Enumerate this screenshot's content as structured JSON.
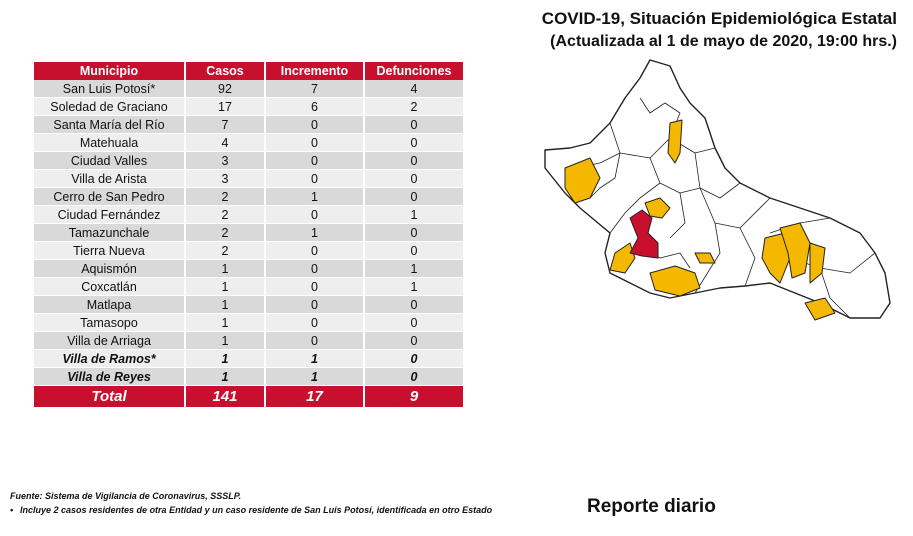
{
  "header": {
    "title": "COVID-19, Situación Epidemiológica Estatal",
    "subtitle": "(Actualizada al 1 de mayo de 2020, 19:00 hrs.)"
  },
  "table": {
    "columns": [
      "Municipio",
      "Casos",
      "Incremento",
      "Defunciones"
    ],
    "rows": [
      {
        "municipio": "San Luis Potosí*",
        "casos": "92",
        "incremento": "7",
        "defunciones": "4",
        "emphasis": false
      },
      {
        "municipio": "Soledad de Graciano",
        "casos": "17",
        "incremento": "6",
        "defunciones": "2",
        "emphasis": false
      },
      {
        "municipio": "Santa María del Río",
        "casos": "7",
        "incremento": "0",
        "defunciones": "0",
        "emphasis": false
      },
      {
        "municipio": "Matehuala",
        "casos": "4",
        "incremento": "0",
        "defunciones": "0",
        "emphasis": false
      },
      {
        "municipio": "Ciudad Valles",
        "casos": "3",
        "incremento": "0",
        "defunciones": "0",
        "emphasis": false
      },
      {
        "municipio": "Villa de Arista",
        "casos": "3",
        "incremento": "0",
        "defunciones": "0",
        "emphasis": false
      },
      {
        "municipio": "Cerro de San Pedro",
        "casos": "2",
        "incremento": "1",
        "defunciones": "0",
        "emphasis": false
      },
      {
        "municipio": "Ciudad Fernández",
        "casos": "2",
        "incremento": "0",
        "defunciones": "1",
        "emphasis": false
      },
      {
        "municipio": "Tamazunchale",
        "casos": "2",
        "incremento": "1",
        "defunciones": "0",
        "emphasis": false
      },
      {
        "municipio": "Tierra Nueva",
        "casos": "2",
        "incremento": "0",
        "defunciones": "0",
        "emphasis": false
      },
      {
        "municipio": "Aquismón",
        "casos": "1",
        "incremento": "0",
        "defunciones": "1",
        "emphasis": false
      },
      {
        "municipio": "Coxcatlán",
        "casos": "1",
        "incremento": "0",
        "defunciones": "1",
        "emphasis": false
      },
      {
        "municipio": "Matlapa",
        "casos": "1",
        "incremento": "0",
        "defunciones": "0",
        "emphasis": false
      },
      {
        "municipio": "Tamasopo",
        "casos": "1",
        "incremento": "0",
        "defunciones": "0",
        "emphasis": false
      },
      {
        "municipio": "Villa de Arriaga",
        "casos": "1",
        "incremento": "0",
        "defunciones": "0",
        "emphasis": false
      },
      {
        "municipio": "Villa de Ramos*",
        "casos": "1",
        "incremento": "1",
        "defunciones": "0",
        "emphasis": true
      },
      {
        "municipio": "Villa de Reyes",
        "casos": "1",
        "incremento": "1",
        "defunciones": "0",
        "emphasis": true
      }
    ],
    "total": {
      "label": "Total",
      "casos": "141",
      "incremento": "17",
      "defunciones": "9"
    }
  },
  "map": {
    "colors": {
      "base": "#ffffff",
      "outline": "#222222",
      "cases": "#f5b800",
      "high": "#c8102e"
    }
  },
  "footer": {
    "source": "Fuente: Sistema de Vigilancia de Coronavirus, SSSLP.",
    "bullet": "•",
    "note": "Incluye 2 casos residentes de otra Entidad y un caso residente de San Luis Potosí, identificada en otro Estado",
    "report_label": "Reporte diario"
  }
}
